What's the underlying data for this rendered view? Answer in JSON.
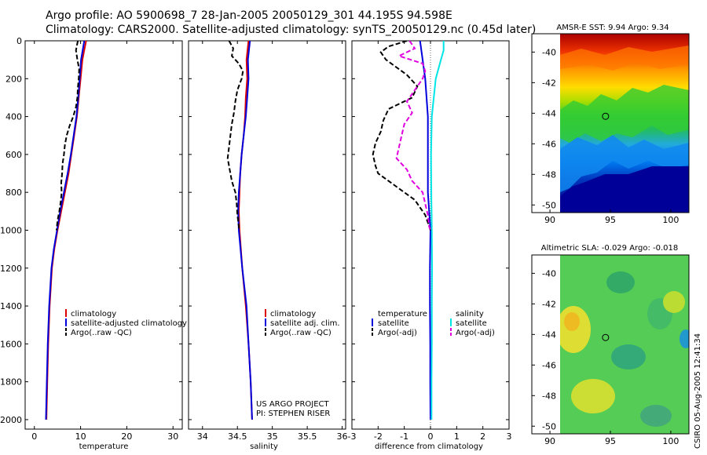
{
  "header": {
    "line1": "Argo profile: AO 5900698_7 28-Jan-2005 20050129_301 44.195S 94.598E",
    "line2": "Climatology: CARS2000. Satellite-adjusted climatology: synTS_20050129.nc (0.45d later)"
  },
  "colors": {
    "climatology": "#dd0000",
    "satellite": "#0000dd",
    "argo": "#000000",
    "sal_sat": "#00e5e5",
    "sal_argo": "#e000e0"
  },
  "depth_axis": {
    "ylim": [
      0,
      2050
    ],
    "ticks": [
      "0",
      "200",
      "400",
      "600",
      "800",
      "1000",
      "1200",
      "1400",
      "1600",
      "1800",
      "2000"
    ]
  },
  "chart_data": [
    {
      "type": "line",
      "id": "temperature",
      "xlabel": "temperature",
      "xlim": [
        -2,
        32
      ],
      "xticks": [
        "0",
        "10",
        "20",
        "30"
      ],
      "xtick_values": [
        0,
        10,
        20,
        30
      ],
      "legend": [
        "climatology",
        "satellite-adjusted climatology",
        "Argo(..raw -QC)"
      ],
      "series": [
        {
          "name": "climatology",
          "depth": [
            0,
            100,
            200,
            300,
            400,
            500,
            600,
            700,
            800,
            900,
            1000,
            1100,
            1200,
            1400,
            1600,
            1800,
            2000
          ],
          "values": [
            11.2,
            10.4,
            10.0,
            9.6,
            9.2,
            8.6,
            8.0,
            7.4,
            6.6,
            5.8,
            5.0,
            4.3,
            3.8,
            3.3,
            3.0,
            2.8,
            2.6
          ]
        },
        {
          "name": "satellite-adjusted climatology",
          "depth": [
            0,
            100,
            200,
            300,
            400,
            500,
            600,
            700,
            800,
            900,
            1000,
            1100,
            1200,
            1400,
            1600,
            1800,
            2000
          ],
          "values": [
            10.8,
            10.1,
            9.8,
            9.5,
            9.1,
            8.5,
            7.9,
            7.2,
            6.4,
            5.6,
            4.9,
            4.2,
            3.7,
            3.2,
            2.9,
            2.7,
            2.5
          ]
        },
        {
          "name": "Argo(..raw -QC)",
          "depth": [
            0,
            50,
            100,
            150,
            200,
            250,
            300,
            350,
            400,
            450,
            500,
            550,
            600,
            650,
            700,
            750,
            800,
            850,
            900,
            950,
            1000
          ],
          "values": [
            9.4,
            9.0,
            9.3,
            9.7,
            9.6,
            9.4,
            9.3,
            9.0,
            8.4,
            7.6,
            7.0,
            6.6,
            6.4,
            6.1,
            6.0,
            5.8,
            5.9,
            5.7,
            5.4,
            5.0,
            4.8
          ]
        }
      ]
    },
    {
      "type": "line",
      "id": "salinity",
      "xlabel": "salinity",
      "xlim": [
        33.8,
        36.05
      ],
      "xticks": [
        "34",
        "34.5",
        "35",
        "35.5",
        "36"
      ],
      "xtick_values": [
        34,
        34.5,
        35,
        35.5,
        36
      ],
      "legend": [
        "climatology",
        "satellite adj. clim.",
        "Argo(..raw -QC)"
      ],
      "annotation": [
        "US ARGO PROJECT",
        "PI: STEPHEN RISER"
      ],
      "series": [
        {
          "name": "climatology",
          "depth": [
            0,
            100,
            200,
            300,
            400,
            500,
            600,
            700,
            800,
            900,
            1000,
            1200,
            1400,
            1600,
            1800,
            2000
          ],
          "values": [
            34.66,
            34.63,
            34.64,
            34.62,
            34.61,
            34.59,
            34.56,
            34.54,
            34.53,
            34.52,
            34.53,
            34.57,
            34.62,
            34.66,
            34.69,
            34.71
          ]
        },
        {
          "name": "satellite adj. clim.",
          "depth": [
            0,
            100,
            200,
            300,
            400,
            500,
            600,
            700,
            800,
            900,
            1000,
            1200,
            1400,
            1600,
            1800,
            2000
          ],
          "values": [
            34.68,
            34.65,
            34.66,
            34.64,
            34.62,
            34.59,
            34.56,
            34.54,
            34.52,
            34.51,
            34.52,
            34.57,
            34.63,
            34.66,
            34.69,
            34.71
          ]
        },
        {
          "name": "Argo(..raw -QC)",
          "depth": [
            0,
            40,
            80,
            120,
            160,
            200,
            260,
            320,
            380,
            440,
            500,
            560,
            620,
            680,
            740,
            800,
            860,
            920,
            980,
            1000
          ],
          "values": [
            34.38,
            34.44,
            34.42,
            34.52,
            34.58,
            34.56,
            34.5,
            34.47,
            34.45,
            34.42,
            34.4,
            34.38,
            34.36,
            34.39,
            34.42,
            34.47,
            34.49,
            34.5,
            34.52,
            34.52
          ]
        }
      ]
    },
    {
      "type": "line",
      "id": "difference",
      "xlabel": "difference from climatology",
      "xlim": [
        -3,
        3
      ],
      "xticks": [
        "-3",
        "-2",
        "-1",
        "0",
        "1",
        "2",
        "3"
      ],
      "xtick_values": [
        -3,
        -2,
        -1,
        0,
        1,
        2,
        3
      ],
      "legend_left": [
        "temperature",
        "satellite",
        "Argo(-adj)"
      ],
      "legend_right": [
        "salinity",
        "satellite",
        "Argo(-adj)"
      ],
      "series": [
        {
          "name": "temperature satellite",
          "depth": [
            0,
            200,
            400,
            600,
            800,
            900,
            1000,
            1200,
            1400,
            1600,
            1800,
            2000
          ],
          "values": [
            -0.4,
            -0.2,
            -0.1,
            -0.1,
            -0.1,
            -0.05,
            0.0,
            -0.02,
            -0.02,
            -0.01,
            -0.01,
            0.0
          ]
        },
        {
          "name": "temperature Argo(-adj)",
          "depth": [
            0,
            30,
            60,
            100,
            140,
            180,
            240,
            300,
            360,
            420,
            480,
            540,
            600,
            660,
            700,
            760,
            800,
            840,
            880,
            920,
            960,
            1000
          ],
          "values": [
            -0.9,
            -1.6,
            -1.9,
            -1.7,
            -1.3,
            -0.9,
            -0.5,
            -0.7,
            -1.6,
            -1.8,
            -1.9,
            -2.1,
            -2.2,
            -2.1,
            -2.0,
            -1.4,
            -1.0,
            -0.6,
            -0.4,
            -0.2,
            -0.1,
            0.0
          ]
        },
        {
          "name": "salinity satellite",
          "depth": [
            0,
            50,
            100,
            200,
            400,
            600,
            800,
            1000,
            1200,
            1400,
            1600,
            1800,
            2000
          ],
          "values": [
            0.5,
            0.5,
            0.4,
            0.2,
            0.05,
            0.02,
            0.03,
            0.05,
            0.06,
            0.05,
            0.05,
            0.04,
            0.04
          ]
        },
        {
          "name": "salinity Argo(-adj)",
          "depth": [
            0,
            40,
            80,
            120,
            160,
            200,
            260,
            320,
            380,
            440,
            500,
            560,
            620,
            680,
            740,
            800,
            860,
            920,
            980,
            1000
          ],
          "values": [
            -0.8,
            -0.6,
            -1.2,
            -0.3,
            -0.2,
            -0.3,
            -0.6,
            -0.9,
            -0.7,
            -1.0,
            -1.1,
            -1.2,
            -1.3,
            -0.9,
            -0.7,
            -0.3,
            -0.2,
            -0.1,
            -0.05,
            0.0
          ]
        }
      ]
    },
    {
      "type": "heatmap",
      "id": "sst_map",
      "title": "AMSR-E SST: 9.94 Argo: 9.34",
      "xlim": [
        88.5,
        101.5
      ],
      "ylim": [
        -50.5,
        -38.8
      ],
      "xticks": [
        "90",
        "95",
        "100"
      ],
      "xtick_values": [
        90,
        95,
        100
      ],
      "yticks": [
        "-40",
        "-42",
        "-44",
        "-46",
        "-48",
        "-50"
      ],
      "ytick_values": [
        -40,
        -42,
        -44,
        -46,
        -48,
        -50
      ],
      "data_extent": {
        "lon": [
          90,
          101.5
        ],
        "lat": [
          -50.5,
          -38.8
        ]
      },
      "float_position": {
        "lon": 94.6,
        "lat": -44.2
      }
    },
    {
      "type": "heatmap",
      "id": "sla_map",
      "title": "Altimetric SLA: -0.029 Argo: -0.018",
      "xlim": [
        88.5,
        101.5
      ],
      "ylim": [
        -50.5,
        -38.8
      ],
      "xticks": [
        "90",
        "95",
        "100"
      ],
      "xtick_values": [
        90,
        95,
        100
      ],
      "yticks": [
        "-40",
        "-42",
        "-44",
        "-46",
        "-48",
        "-50"
      ],
      "ytick_values": [
        -40,
        -42,
        -44,
        -46,
        -48,
        -50
      ],
      "data_extent": {
        "lon": [
          90,
          101.5
        ],
        "lat": [
          -50.5,
          -38.8
        ]
      },
      "float_position": {
        "lon": 94.6,
        "lat": -44.2
      }
    }
  ],
  "credit": "CSIRO 05-Aug-2005 12:41:34"
}
